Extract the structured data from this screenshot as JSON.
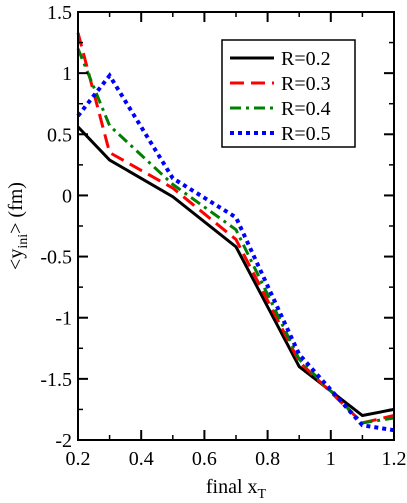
{
  "chart_data": {
    "type": "line",
    "xlabel": {
      "main": "final x",
      "sub": "T"
    },
    "ylabel": {
      "open": "<y",
      "sub": "ini",
      "close": "> (fm)"
    },
    "xlim": [
      0.2,
      1.2
    ],
    "ylim": [
      -2,
      1.5
    ],
    "xticks": [
      0.2,
      0.4,
      0.6,
      0.8,
      1.0,
      1.2
    ],
    "xtick_labels": [
      "0.2",
      "0.4",
      "0.6",
      "0.8",
      "1",
      "1.2"
    ],
    "yticks": [
      -2,
      -1.5,
      -1,
      -0.5,
      0,
      0.5,
      1,
      1.5
    ],
    "ytick_labels": [
      "-2",
      "-1.5",
      "-1",
      "-0.5",
      "0",
      "0.5",
      "1",
      "1.5"
    ],
    "grid": false,
    "legend_position": "top-right",
    "series": [
      {
        "name": "R=0.2",
        "color": "#000000",
        "dash": "solid",
        "x": [
          0.2,
          0.3,
          0.5,
          0.7,
          0.9,
          1.1,
          1.2
        ],
        "y": [
          0.56,
          0.29,
          -0.01,
          -0.42,
          -1.4,
          -1.8,
          -1.75
        ]
      },
      {
        "name": "R=0.3",
        "color": "#ff0000",
        "dash": "dashed",
        "x": [
          0.2,
          0.3,
          0.5,
          0.7,
          0.9,
          1.1,
          1.2
        ],
        "y": [
          1.33,
          0.35,
          0.06,
          -0.36,
          -1.36,
          -1.86,
          -1.8
        ]
      },
      {
        "name": "R=0.4",
        "color": "#008000",
        "dash": "dashdot",
        "x": [
          0.2,
          0.3,
          0.5,
          0.7,
          0.9,
          1.1,
          1.2
        ],
        "y": [
          1.2,
          0.57,
          0.09,
          -0.28,
          -1.34,
          -1.86,
          -1.82
        ]
      },
      {
        "name": "R=0.5",
        "color": "#0000ff",
        "dash": "dotted",
        "x": [
          0.2,
          0.3,
          0.5,
          0.7,
          0.9,
          1.1,
          1.2
        ],
        "y": [
          0.65,
          0.98,
          0.14,
          -0.18,
          -1.3,
          -1.88,
          -1.92
        ]
      }
    ]
  }
}
